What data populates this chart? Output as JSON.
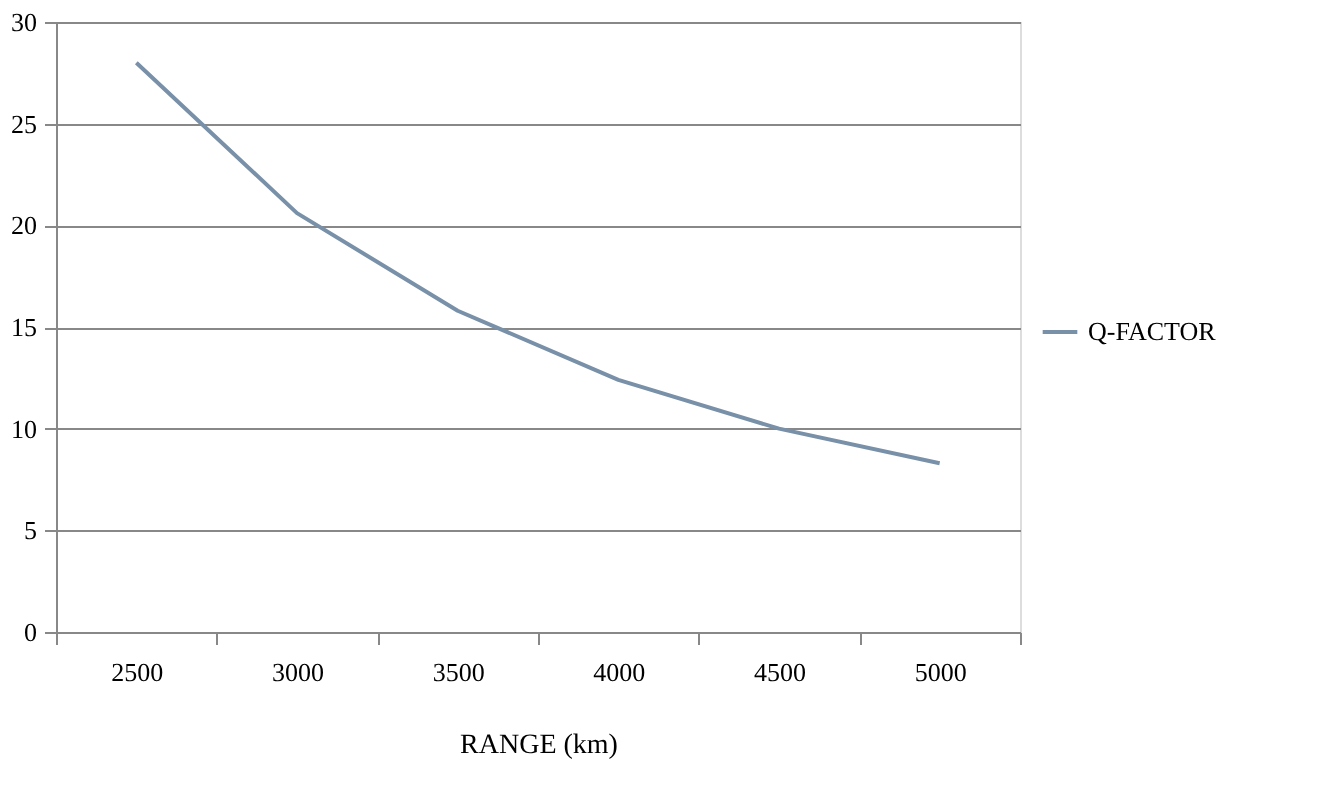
{
  "chart_data": {
    "type": "line",
    "xlabel": "RANGE (km)",
    "categories": [
      "2500",
      "3000",
      "3500",
      "4000",
      "4500",
      "5000"
    ],
    "series": [
      {
        "name": "Q-FACTOR",
        "color": "#7890a8",
        "values": [
          28.0,
          20.6,
          15.8,
          12.4,
          10.0,
          8.3
        ]
      }
    ],
    "ylim": [
      0,
      30
    ],
    "yticks": [
      0,
      5,
      10,
      15,
      20,
      25,
      30
    ],
    "grid": "y",
    "legend": "right",
    "marker": "none",
    "line_style": "solid"
  }
}
